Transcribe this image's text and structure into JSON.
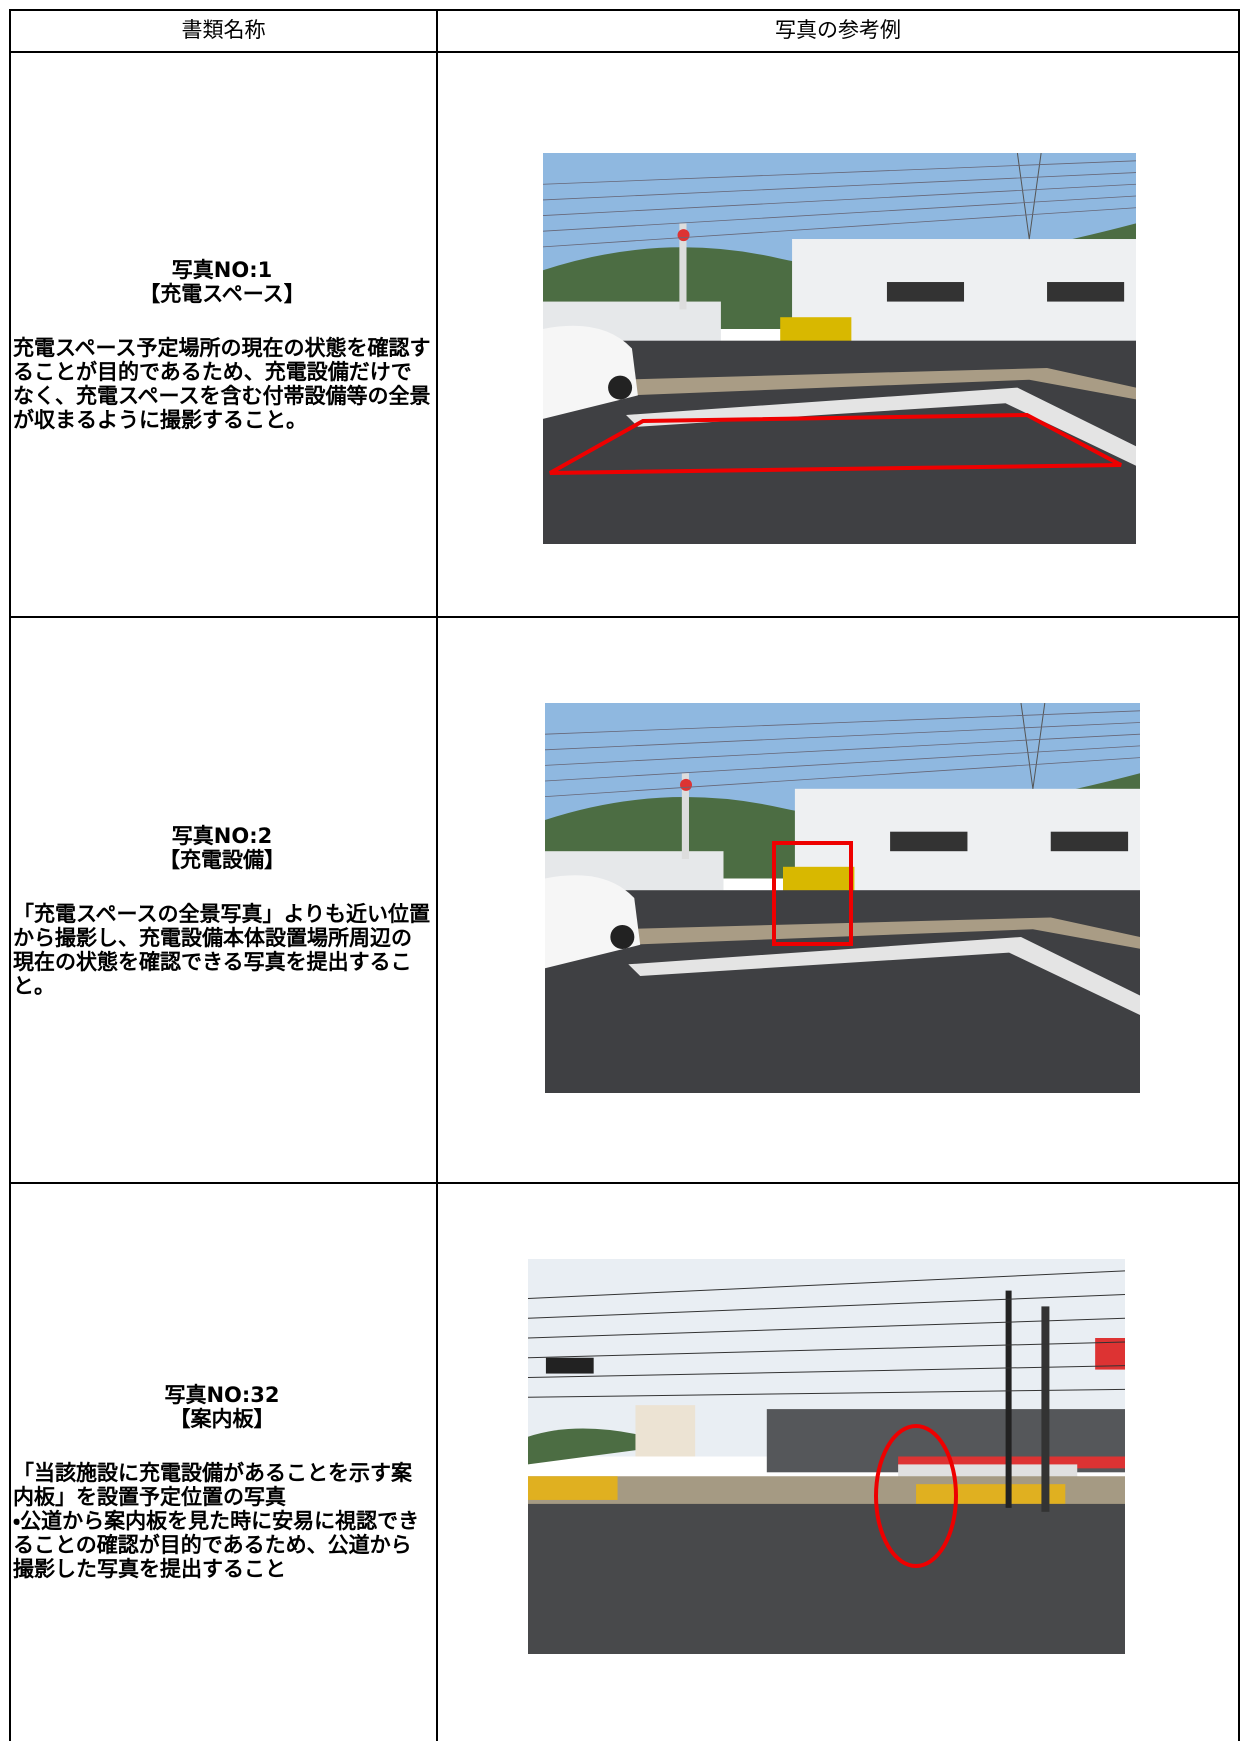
{
  "header": {
    "col1": "書類名称",
    "col2": "写真の参考例"
  },
  "rows": [
    {
      "title": "写真NO:1",
      "subtitle": "【充電スペース】",
      "description": [
        "充電スペース予定場所の現在の状態を確認することが目的であるため、充電設備だけでなく、充電スペースを含む付帯設備等の全景が収まるように撮影すること。"
      ]
    },
    {
      "title": "写真NO:2",
      "subtitle": "【充電設備】",
      "description": [
        "「充電スペースの全景写真」よりも近い位置から撮影し、充電設備本体設置場所周辺の現在の状態を確認できる写真を提出すること。"
      ]
    },
    {
      "title": "写真NO:32",
      "subtitle": "【案内板】",
      "description": [
        "「当該施設に充電設備があることを示す案内板」を設置予定位置の写真",
        "・公道から案内板を見た時に安易に視認できることの確認が目的であるため、公道から撮影した写真を提出すること"
      ]
    }
  ]
}
